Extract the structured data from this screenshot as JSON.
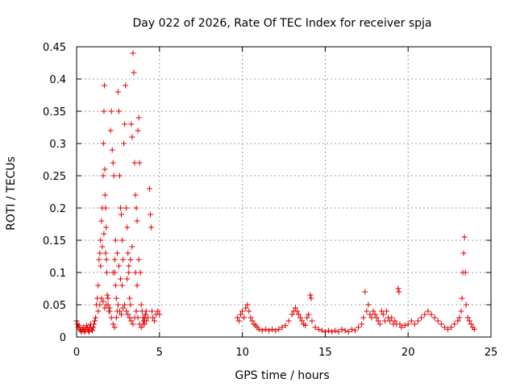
{
  "chart_data": {
    "type": "scatter",
    "title": "Day 022 of 2026, Rate Of TEC Index for receiver spja",
    "xlabel": "GPS time / hours",
    "ylabel": "ROTI / TECUs",
    "xlim": [
      0,
      25
    ],
    "ylim": [
      0,
      0.45
    ],
    "xticks": [
      "0",
      "5",
      "10",
      "15",
      "20",
      "25"
    ],
    "xtick_values": [
      0,
      5,
      10,
      15,
      20,
      25
    ],
    "yticks": [
      "0",
      "0.05",
      "0.1",
      "0.15",
      "0.2",
      "0.25",
      "0.3",
      "0.35",
      "0.4",
      "0.45"
    ],
    "ytick_values": [
      0,
      0.05,
      0.1,
      0.15,
      0.2,
      0.25,
      0.3,
      0.35,
      0.4,
      0.45
    ],
    "grid": true,
    "marker": "+",
    "color": "#e00000",
    "series": [
      {
        "points": [
          [
            0.0,
            0.025
          ],
          [
            0.05,
            0.02
          ],
          [
            0.1,
            0.015
          ],
          [
            0.15,
            0.018
          ],
          [
            0.2,
            0.012
          ],
          [
            0.25,
            0.01
          ],
          [
            0.3,
            0.008
          ],
          [
            0.35,
            0.012
          ],
          [
            0.4,
            0.015
          ],
          [
            0.45,
            0.01
          ],
          [
            0.5,
            0.008
          ],
          [
            0.55,
            0.012
          ],
          [
            0.6,
            0.018
          ],
          [
            0.65,
            0.014
          ],
          [
            0.7,
            0.01
          ],
          [
            0.75,
            0.008
          ],
          [
            0.8,
            0.015
          ],
          [
            0.85,
            0.02
          ],
          [
            0.9,
            0.012
          ],
          [
            0.95,
            0.01
          ],
          [
            1.0,
            0.015
          ],
          [
            1.05,
            0.02
          ],
          [
            1.1,
            0.025
          ],
          [
            1.15,
            0.03
          ],
          [
            1.2,
            0.05
          ],
          [
            1.25,
            0.06
          ],
          [
            1.3,
            0.08
          ],
          [
            1.35,
            0.12
          ],
          [
            1.4,
            0.13
          ],
          [
            1.45,
            0.15
          ],
          [
            1.5,
            0.18
          ],
          [
            1.55,
            0.2
          ],
          [
            1.6,
            0.25
          ],
          [
            1.62,
            0.3
          ],
          [
            1.65,
            0.35
          ],
          [
            1.68,
            0.39
          ],
          [
            1.7,
            0.26
          ],
          [
            1.72,
            0.22
          ],
          [
            1.75,
            0.2
          ],
          [
            1.78,
            0.17
          ],
          [
            1.8,
            0.12
          ],
          [
            1.82,
            0.1
          ],
          [
            1.85,
            0.065
          ],
          [
            1.9,
            0.05
          ],
          [
            1.95,
            0.04
          ],
          [
            2.0,
            0.045
          ],
          [
            2.05,
            0.32
          ],
          [
            2.1,
            0.35
          ],
          [
            2.15,
            0.29
          ],
          [
            2.2,
            0.27
          ],
          [
            2.25,
            0.25
          ],
          [
            2.3,
            0.1
          ],
          [
            2.35,
            0.08
          ],
          [
            2.4,
            0.06
          ],
          [
            2.45,
            0.04
          ],
          [
            2.5,
            0.38
          ],
          [
            2.55,
            0.35
          ],
          [
            2.6,
            0.25
          ],
          [
            2.65,
            0.2
          ],
          [
            2.7,
            0.19
          ],
          [
            2.75,
            0.15
          ],
          [
            2.8,
            0.12
          ],
          [
            2.85,
            0.3
          ],
          [
            2.9,
            0.33
          ],
          [
            2.95,
            0.39
          ],
          [
            3.0,
            0.2
          ],
          [
            3.05,
            0.17
          ],
          [
            3.1,
            0.13
          ],
          [
            3.15,
            0.1
          ],
          [
            3.2,
            0.06
          ],
          [
            3.25,
            0.05
          ],
          [
            3.3,
            0.33
          ],
          [
            3.35,
            0.31
          ],
          [
            3.4,
            0.44
          ],
          [
            3.45,
            0.41
          ],
          [
            3.5,
            0.27
          ],
          [
            3.55,
            0.22
          ],
          [
            3.6,
            0.2
          ],
          [
            3.65,
            0.18
          ],
          [
            3.7,
            0.32
          ],
          [
            3.75,
            0.34
          ],
          [
            3.8,
            0.27
          ],
          [
            3.85,
            0.1
          ],
          [
            3.9,
            0.05
          ],
          [
            3.95,
            0.04
          ],
          [
            4.0,
            0.03
          ],
          [
            4.05,
            0.025
          ],
          [
            4.1,
            0.02
          ],
          [
            4.15,
            0.035
          ],
          [
            4.2,
            0.04
          ],
          [
            4.3,
            0.03
          ],
          [
            4.4,
            0.23
          ],
          [
            4.45,
            0.19
          ],
          [
            4.5,
            0.17
          ],
          [
            4.55,
            0.04
          ],
          [
            4.6,
            0.03
          ],
          [
            4.7,
            0.025
          ],
          [
            4.8,
            0.035
          ],
          [
            4.9,
            0.04
          ],
          [
            5.0,
            0.035
          ],
          [
            1.3,
            0.04
          ],
          [
            1.4,
            0.05
          ],
          [
            1.5,
            0.06
          ],
          [
            1.6,
            0.055
          ],
          [
            1.7,
            0.045
          ],
          [
            1.8,
            0.05
          ],
          [
            1.9,
            0.06
          ],
          [
            2.0,
            0.04
          ],
          [
            2.1,
            0.03
          ],
          [
            2.2,
            0.02
          ],
          [
            2.3,
            0.015
          ],
          [
            2.4,
            0.03
          ],
          [
            2.5,
            0.05
          ],
          [
            2.6,
            0.04
          ],
          [
            2.7,
            0.035
          ],
          [
            2.8,
            0.045
          ],
          [
            2.9,
            0.05
          ],
          [
            3.0,
            0.04
          ],
          [
            3.1,
            0.035
          ],
          [
            3.2,
            0.03
          ],
          [
            3.3,
            0.025
          ],
          [
            3.4,
            0.02
          ],
          [
            3.5,
            0.03
          ],
          [
            3.6,
            0.04
          ],
          [
            3.7,
            0.03
          ],
          [
            3.8,
            0.02
          ],
          [
            3.9,
            0.015
          ],
          [
            4.0,
            0.02
          ],
          [
            4.1,
            0.03
          ],
          [
            4.2,
            0.025
          ],
          [
            2.35,
            0.15
          ],
          [
            2.45,
            0.13
          ],
          [
            2.55,
            0.11
          ],
          [
            2.65,
            0.09
          ],
          [
            2.75,
            0.08
          ],
          [
            3.05,
            0.09
          ],
          [
            3.15,
            0.11
          ],
          [
            3.25,
            0.12
          ],
          [
            3.35,
            0.14
          ],
          [
            3.55,
            0.1
          ],
          [
            3.65,
            0.08
          ],
          [
            3.75,
            0.12
          ],
          [
            1.45,
            0.11
          ],
          [
            1.55,
            0.14
          ],
          [
            1.65,
            0.16
          ],
          [
            1.75,
            0.13
          ],
          [
            2.2,
            0.1
          ],
          [
            2.3,
            0.12
          ],
          [
            9.7,
            0.03
          ],
          [
            9.8,
            0.025
          ],
          [
            9.9,
            0.035
          ],
          [
            10.0,
            0.04
          ],
          [
            10.1,
            0.03
          ],
          [
            10.2,
            0.045
          ],
          [
            10.3,
            0.05
          ],
          [
            10.4,
            0.04
          ],
          [
            10.5,
            0.03
          ],
          [
            10.6,
            0.025
          ],
          [
            10.7,
            0.02
          ],
          [
            10.8,
            0.018
          ],
          [
            10.9,
            0.015
          ],
          [
            11.0,
            0.012
          ],
          [
            11.2,
            0.01
          ],
          [
            11.4,
            0.012
          ],
          [
            11.6,
            0.01
          ],
          [
            11.8,
            0.012
          ],
          [
            12.0,
            0.01
          ],
          [
            12.2,
            0.012
          ],
          [
            12.4,
            0.015
          ],
          [
            12.6,
            0.018
          ],
          [
            12.8,
            0.025
          ],
          [
            13.0,
            0.035
          ],
          [
            13.1,
            0.04
          ],
          [
            13.2,
            0.045
          ],
          [
            13.3,
            0.04
          ],
          [
            13.4,
            0.035
          ],
          [
            13.5,
            0.03
          ],
          [
            13.6,
            0.025
          ],
          [
            13.7,
            0.02
          ],
          [
            13.8,
            0.018
          ],
          [
            13.9,
            0.03
          ],
          [
            14.0,
            0.035
          ],
          [
            14.1,
            0.065
          ],
          [
            14.15,
            0.06
          ],
          [
            14.2,
            0.025
          ],
          [
            14.4,
            0.015
          ],
          [
            14.6,
            0.012
          ],
          [
            14.8,
            0.01
          ],
          [
            15.0,
            0.008
          ],
          [
            15.2,
            0.01
          ],
          [
            15.4,
            0.008
          ],
          [
            15.6,
            0.01
          ],
          [
            15.8,
            0.008
          ],
          [
            16.0,
            0.012
          ],
          [
            16.2,
            0.01
          ],
          [
            16.4,
            0.008
          ],
          [
            16.6,
            0.012
          ],
          [
            16.8,
            0.01
          ],
          [
            17.0,
            0.015
          ],
          [
            17.2,
            0.02
          ],
          [
            17.3,
            0.03
          ],
          [
            17.4,
            0.07
          ],
          [
            17.5,
            0.04
          ],
          [
            17.6,
            0.05
          ],
          [
            17.7,
            0.035
          ],
          [
            17.8,
            0.03
          ],
          [
            17.9,
            0.04
          ],
          [
            18.0,
            0.035
          ],
          [
            18.1,
            0.03
          ],
          [
            18.2,
            0.025
          ],
          [
            18.3,
            0.02
          ],
          [
            18.4,
            0.04
          ],
          [
            18.5,
            0.035
          ],
          [
            18.6,
            0.025
          ],
          [
            18.7,
            0.04
          ],
          [
            18.8,
            0.03
          ],
          [
            18.9,
            0.025
          ],
          [
            19.0,
            0.03
          ],
          [
            19.1,
            0.02
          ],
          [
            19.2,
            0.025
          ],
          [
            19.3,
            0.02
          ],
          [
            19.4,
            0.075
          ],
          [
            19.45,
            0.07
          ],
          [
            19.5,
            0.02
          ],
          [
            19.6,
            0.015
          ],
          [
            19.8,
            0.018
          ],
          [
            20.0,
            0.02
          ],
          [
            20.2,
            0.025
          ],
          [
            20.4,
            0.02
          ],
          [
            20.6,
            0.025
          ],
          [
            20.8,
            0.03
          ],
          [
            21.0,
            0.035
          ],
          [
            21.2,
            0.04
          ],
          [
            21.4,
            0.035
          ],
          [
            21.6,
            0.03
          ],
          [
            21.8,
            0.025
          ],
          [
            22.0,
            0.02
          ],
          [
            22.2,
            0.015
          ],
          [
            22.4,
            0.012
          ],
          [
            22.6,
            0.015
          ],
          [
            22.8,
            0.02
          ],
          [
            23.0,
            0.025
          ],
          [
            23.1,
            0.03
          ],
          [
            23.2,
            0.04
          ],
          [
            23.25,
            0.06
          ],
          [
            23.3,
            0.1
          ],
          [
            23.35,
            0.13
          ],
          [
            23.4,
            0.155
          ],
          [
            23.45,
            0.1
          ],
          [
            23.5,
            0.05
          ],
          [
            23.6,
            0.03
          ],
          [
            23.7,
            0.025
          ],
          [
            23.8,
            0.02
          ],
          [
            23.9,
            0.015
          ],
          [
            24.0,
            0.012
          ]
        ]
      }
    ]
  }
}
